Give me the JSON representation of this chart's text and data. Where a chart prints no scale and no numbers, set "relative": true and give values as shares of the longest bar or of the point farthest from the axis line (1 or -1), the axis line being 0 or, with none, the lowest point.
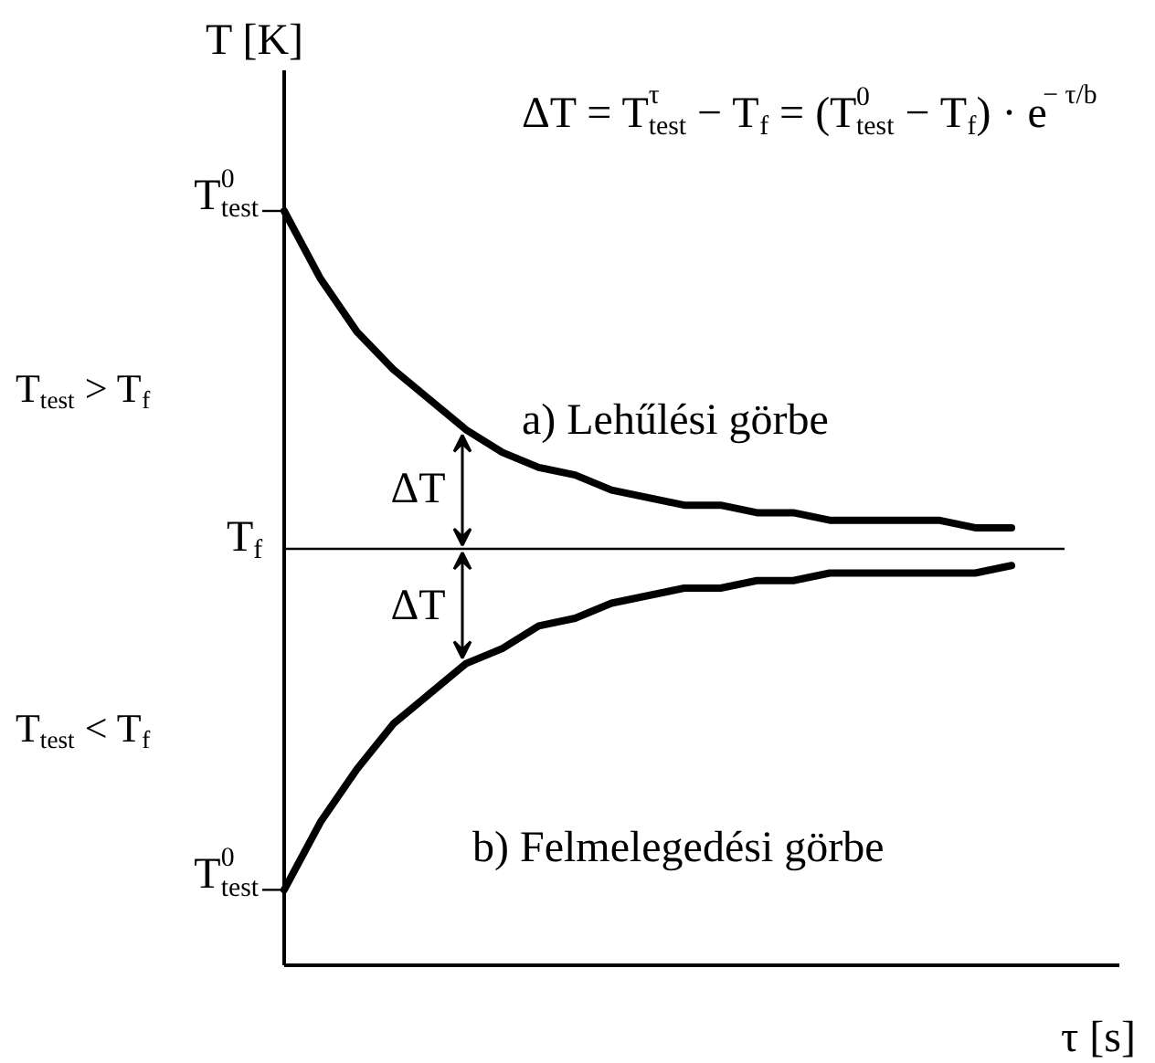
{
  "chart_data": {
    "type": "line",
    "relative": true,
    "xlabel": "τ [s]",
    "ylabel": "T [K]",
    "categories": [
      null,
      null,
      null,
      null,
      null,
      null,
      null,
      null,
      null,
      null,
      null,
      null,
      null,
      null,
      null,
      null,
      null,
      null,
      null,
      null,
      null
    ],
    "series": [
      {
        "color": "#000000",
        "values": [
          1.0,
          0.91,
          0.84,
          0.79,
          0.75,
          0.71,
          0.68,
          0.66,
          0.65,
          0.63,
          0.62,
          0.61,
          0.61,
          0.6,
          0.6,
          0.59,
          0.59,
          0.59,
          0.59,
          0.58,
          0.58
        ]
      },
      {
        "color": "#000000",
        "values": [
          0.1,
          0.19,
          0.26,
          0.32,
          0.36,
          0.4,
          0.42,
          0.45,
          0.46,
          0.48,
          0.49,
          0.5,
          0.5,
          0.51,
          0.51,
          0.52,
          0.52,
          0.52,
          0.52,
          0.52,
          0.53
        ]
      }
    ],
    "ref_lines": [
      {
        "axis": "y",
        "value": 0.552,
        "label": "T$_{f}$",
        "color": "#000000"
      }
    ],
    "annotations": [
      "ΔT = T$^{τ}$$_{test}$ − T$_{f}$ = (T$^{0}$$_{test}$ − T$_{f}$) · e$^{− τ/b}$",
      "T$_{test}$ > T$_{f}$",
      "T$_{test}$ < T$_{f}$",
      "T$^{0}$$_{test}$",
      "T$^{0}$$_{test}$",
      "a)  Lehűlési görbe",
      "b)  Felmelegedési görbe",
      "ΔT",
      "ΔT"
    ]
  }
}
